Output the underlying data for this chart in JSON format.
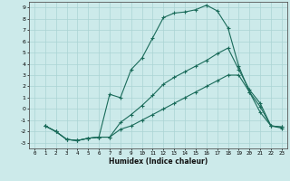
{
  "xlabel": "Humidex (Indice chaleur)",
  "bg_color": "#cceaea",
  "grid_color": "#aad4d4",
  "line_color": "#1a6b5a",
  "xlim": [
    -0.5,
    23.5
  ],
  "ylim": [
    -3.5,
    9.5
  ],
  "xticks": [
    0,
    1,
    2,
    3,
    4,
    5,
    6,
    7,
    8,
    9,
    10,
    11,
    12,
    13,
    14,
    15,
    16,
    17,
    18,
    19,
    20,
    21,
    22,
    23
  ],
  "yticks": [
    -3,
    -2,
    -1,
    0,
    1,
    2,
    3,
    4,
    5,
    6,
    7,
    8,
    9
  ],
  "line1_x": [
    1,
    2,
    3,
    4,
    5,
    6,
    7,
    8,
    9,
    10,
    11,
    12,
    13,
    14,
    15,
    16,
    17,
    18,
    19,
    20,
    21,
    22,
    23
  ],
  "line1_y": [
    -1.5,
    -2.0,
    -2.7,
    -2.8,
    -2.6,
    -2.5,
    1.3,
    1.0,
    3.5,
    4.5,
    6.3,
    8.1,
    8.5,
    8.6,
    8.8,
    9.2,
    8.7,
    7.2,
    3.8,
    1.5,
    -0.3,
    -1.5,
    -1.6
  ],
  "line2_x": [
    1,
    2,
    3,
    4,
    5,
    6,
    7,
    8,
    9,
    10,
    11,
    12,
    13,
    14,
    15,
    16,
    17,
    18,
    19,
    20,
    21,
    22,
    23
  ],
  "line2_y": [
    -1.5,
    -2.0,
    -2.7,
    -2.8,
    -2.6,
    -2.5,
    -2.5,
    -1.2,
    -0.5,
    0.3,
    1.2,
    2.2,
    2.8,
    3.3,
    3.8,
    4.3,
    4.9,
    5.4,
    3.5,
    1.7,
    0.5,
    -1.5,
    -1.6
  ],
  "line3_x": [
    1,
    2,
    3,
    4,
    5,
    6,
    7,
    8,
    9,
    10,
    11,
    12,
    13,
    14,
    15,
    16,
    17,
    18,
    19,
    20,
    21,
    22,
    23
  ],
  "line3_y": [
    -1.5,
    -2.0,
    -2.7,
    -2.8,
    -2.6,
    -2.5,
    -2.5,
    -1.8,
    -1.5,
    -1.0,
    -0.5,
    0.0,
    0.5,
    1.0,
    1.5,
    2.0,
    2.5,
    3.0,
    3.0,
    1.5,
    0.2,
    -1.5,
    -1.7
  ]
}
